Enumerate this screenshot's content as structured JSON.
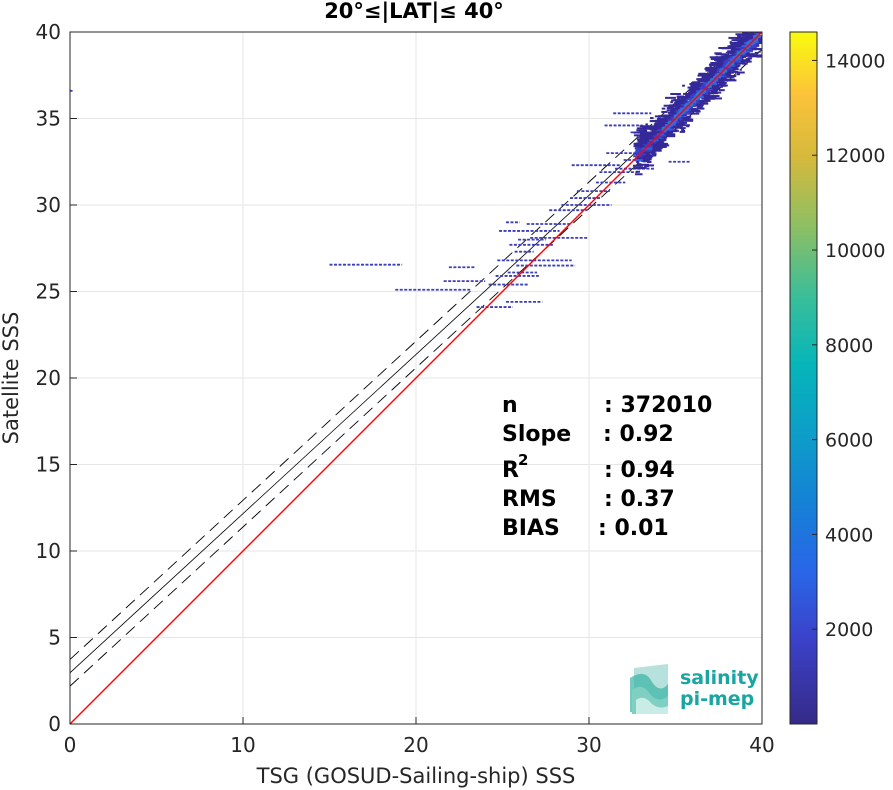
{
  "chart_data": {
    "type": "heatmap",
    "title": "20°≤|LAT|≤ 40°",
    "xlabel": "TSG (GOSUD-Sailing-ship) SSS",
    "ylabel": "Satellite SSS",
    "xlim": [
      0,
      40
    ],
    "ylim": [
      0,
      40
    ],
    "xticks": [
      "0",
      "10",
      "20",
      "30",
      "40"
    ],
    "yticks": [
      "0",
      "5",
      "10",
      "15",
      "20",
      "25",
      "30",
      "35",
      "40"
    ],
    "grid": true,
    "colorbar": {
      "range": [
        0,
        14600
      ],
      "ticks": [
        "2000",
        "4000",
        "6000",
        "8000",
        "10000",
        "12000",
        "14000"
      ],
      "colormap": "parula"
    },
    "lines": [
      {
        "name": "identity",
        "slope": 1.0,
        "intercept": 0.0,
        "color": "#ff0000",
        "style": "solid"
      },
      {
        "name": "fit",
        "slope": 0.92,
        "intercept": 2.96,
        "color": "#000000",
        "style": "solid"
      },
      {
        "name": "fit_upper",
        "slope": 0.92,
        "intercept": 3.73,
        "color": "#000000",
        "style": "dashed"
      },
      {
        "name": "fit_lower",
        "slope": 0.92,
        "intercept": 2.19,
        "color": "#000000",
        "style": "dashed"
      }
    ],
    "density_core": {
      "x_range": [
        32.8,
        40
      ],
      "y_offset": 0.1,
      "y_spread": 0.6
    },
    "outlier_segments": [
      {
        "x1": 15.0,
        "x2": 19.2,
        "y": 26.55
      },
      {
        "x1": 18.8,
        "x2": 23.2,
        "y": 25.1
      },
      {
        "x1": 21.6,
        "x2": 24.0,
        "y": 25.6
      },
      {
        "x1": 21.9,
        "x2": 23.4,
        "y": 26.4
      },
      {
        "x1": 23.5,
        "x2": 25.6,
        "y": 24.1
      },
      {
        "x1": 25.2,
        "x2": 27.3,
        "y": 24.4
      },
      {
        "x1": 24.2,
        "x2": 26.5,
        "y": 25.4
      },
      {
        "x1": 24.6,
        "x2": 27.1,
        "y": 25.9
      },
      {
        "x1": 25.3,
        "x2": 27.0,
        "y": 26.1
      },
      {
        "x1": 25.8,
        "x2": 29.2,
        "y": 26.5
      },
      {
        "x1": 24.7,
        "x2": 29.0,
        "y": 26.8
      },
      {
        "x1": 25.7,
        "x2": 26.8,
        "y": 27.3
      },
      {
        "x1": 25.4,
        "x2": 28.0,
        "y": 27.7
      },
      {
        "x1": 25.9,
        "x2": 27.5,
        "y": 28.0
      },
      {
        "x1": 24.8,
        "x2": 28.3,
        "y": 28.5
      },
      {
        "x1": 26.6,
        "x2": 29.9,
        "y": 28.1
      },
      {
        "x1": 26.4,
        "x2": 28.9,
        "y": 28.9
      },
      {
        "x1": 25.2,
        "x2": 26.0,
        "y": 29.0
      },
      {
        "x1": 27.7,
        "x2": 29.9,
        "y": 29.7
      },
      {
        "x1": 28.4,
        "x2": 31.3,
        "y": 30.0
      },
      {
        "x1": 28.9,
        "x2": 30.7,
        "y": 30.4
      },
      {
        "x1": 29.3,
        "x2": 31.2,
        "y": 30.8
      },
      {
        "x1": 30.4,
        "x2": 32.1,
        "y": 31.3
      },
      {
        "x1": 29.0,
        "x2": 31.8,
        "y": 32.3
      },
      {
        "x1": 30.6,
        "x2": 32.8,
        "y": 31.9
      },
      {
        "x1": 31.5,
        "x2": 33.8,
        "y": 32.1
      },
      {
        "x1": 32.0,
        "x2": 33.6,
        "y": 32.6
      },
      {
        "x1": 31.0,
        "x2": 33.9,
        "y": 33.0
      },
      {
        "x1": 30.9,
        "x2": 33.1,
        "y": 34.6
      },
      {
        "x1": 31.4,
        "x2": 33.6,
        "y": 35.3
      },
      {
        "x1": 32.4,
        "x2": 34.2,
        "y": 34.2
      },
      {
        "x1": 32.8,
        "x2": 34.4,
        "y": 33.7
      },
      {
        "x1": 34.6,
        "x2": 35.9,
        "y": 32.5
      },
      {
        "x1": 0.0,
        "x2": 0.15,
        "y": 36.6
      }
    ]
  },
  "stats": {
    "n_label": "n",
    "n_value": ": 372010",
    "slope_label": "Slope",
    "slope_value": ": 0.92",
    "r2_base": "R",
    "r2_sup": "2",
    "r2_value": ": 0.94",
    "rms_label": "RMS",
    "rms_value": ": 0.37",
    "bias_label": "BIAS",
    "bias_value": ": 0.01"
  },
  "logo": {
    "line1": "salinity",
    "line2": "pi-mep",
    "color": "#1aa6a0"
  }
}
